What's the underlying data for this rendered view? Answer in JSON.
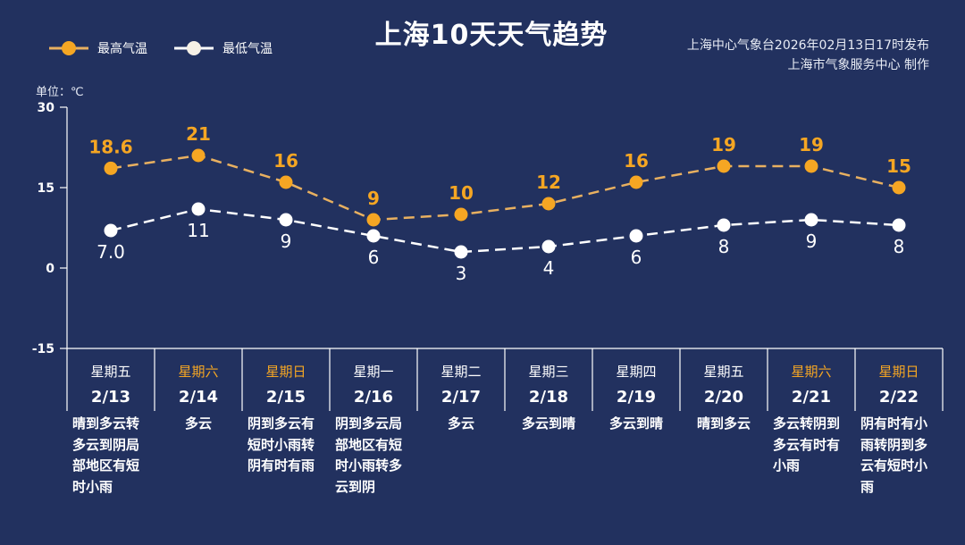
{
  "title": "上海10天天气趋势",
  "source_line1": "上海中心气象台2026年02月13日17时发布",
  "source_line2": "上海市气象服务中心 制作",
  "unit_label": "单位：℃",
  "colors": {
    "background": "#22315f",
    "high": "#f5a623",
    "low": "#ffffff",
    "weekend": "#f5a623"
  },
  "chart_data": {
    "type": "line",
    "ylim": [
      -15,
      30
    ],
    "yticks": [
      30,
      15,
      0,
      -15
    ],
    "categories": [
      "2/13",
      "2/14",
      "2/15",
      "2/16",
      "2/17",
      "2/18",
      "2/19",
      "2/20",
      "2/21",
      "2/22"
    ],
    "weekdays": [
      "星期五",
      "星期六",
      "星期日",
      "星期一",
      "星期二",
      "星期三",
      "星期四",
      "星期五",
      "星期六",
      "星期日"
    ],
    "weekend": [
      false,
      true,
      true,
      false,
      false,
      false,
      false,
      false,
      true,
      true
    ],
    "series": [
      {
        "name": "最高气温",
        "values": [
          18.6,
          21,
          16,
          9,
          10,
          12,
          16,
          19,
          19,
          15
        ],
        "labels": [
          "18.6",
          "21",
          "16",
          "9",
          "10",
          "12",
          "16",
          "19",
          "19",
          "15"
        ]
      },
      {
        "name": "最低气温",
        "values": [
          7.0,
          11,
          9,
          6,
          3,
          4,
          6,
          8,
          9,
          8
        ],
        "labels": [
          "7.0",
          "11",
          "9",
          "6",
          "3",
          "4",
          "6",
          "8",
          "9",
          "8"
        ]
      }
    ],
    "legend": "top-left",
    "line_style": "dashed"
  },
  "descriptions": [
    "晴到多云转多云到阴局部地区有短时小雨",
    "多云",
    "阴到多云有短时小雨转阴有时有雨",
    "阴到多云局部地区有短时小雨转多云到阴",
    "多云",
    "多云到晴",
    "多云到晴",
    "晴到多云",
    "多云转阴到多云有时有小雨",
    "阴有时有小雨转阴到多云有短时小雨"
  ]
}
